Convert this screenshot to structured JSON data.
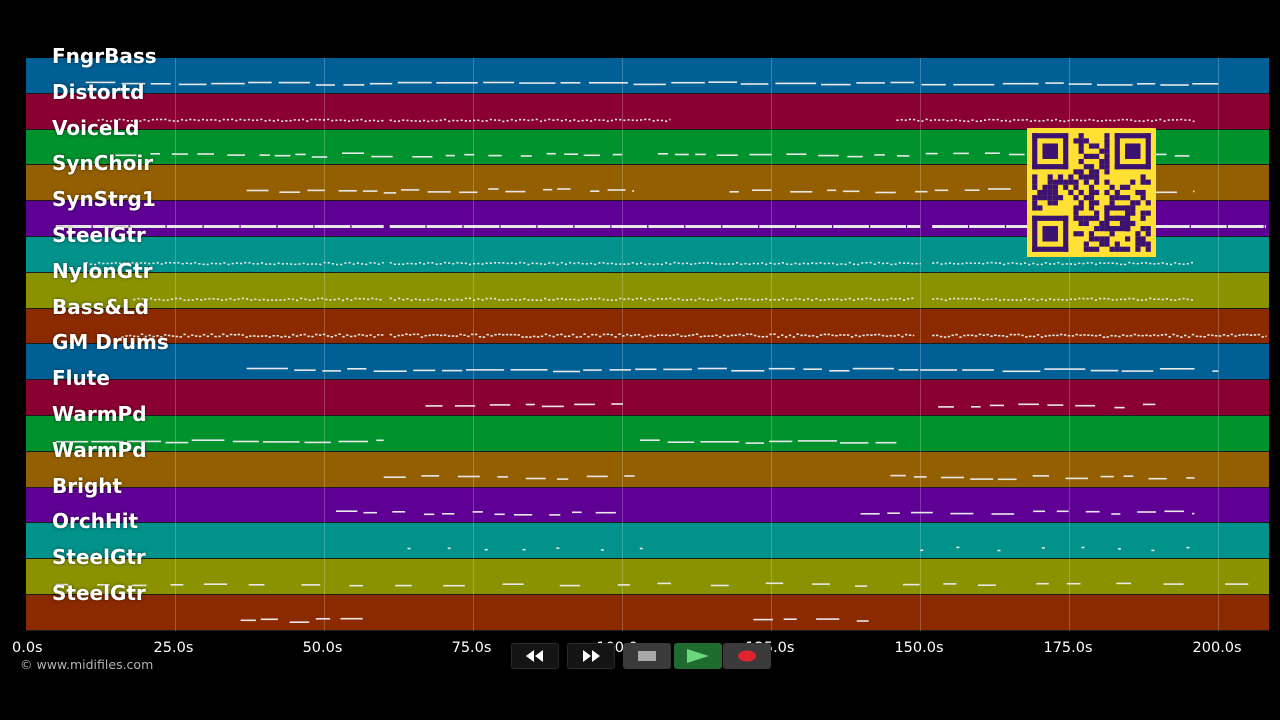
{
  "tracks": [
    {
      "name": "FngrBass",
      "color": "#005f94"
    },
    {
      "name": "Distortd",
      "color": "#8b0032"
    },
    {
      "name": "VoiceLd",
      "color": "#00922d"
    },
    {
      "name": "SynChoir",
      "color": "#945f00"
    },
    {
      "name": "SynStrg1",
      "color": "#5f0094"
    },
    {
      "name": "SteelGtr",
      "color": "#00928b"
    },
    {
      "name": "NylonGtr",
      "color": "#8b9200"
    },
    {
      "name": "Bass&Ld",
      "color": "#8b2a00"
    },
    {
      "name": "GM Drums",
      "color": "#005f94"
    },
    {
      "name": "Flute",
      "color": "#8b0032"
    },
    {
      "name": "WarmPd",
      "color": "#00922d"
    },
    {
      "name": "WarmPd",
      "color": "#945f00"
    },
    {
      "name": "Bright",
      "color": "#5f0094"
    },
    {
      "name": "OrchHit",
      "color": "#00928b"
    },
    {
      "name": "SteelGtr",
      "color": "#8b9200"
    },
    {
      "name": "SteelGtr",
      "color": "#8b2a00"
    }
  ],
  "extra_lane_colors": [
    "#005f94",
    "#8b0032",
    "#00922d",
    "#945f00",
    "#5f0094",
    "#00928b",
    "#8b9200",
    "#8b2a00"
  ],
  "timeline": {
    "max_seconds": 208.5,
    "ticks": [
      {
        "value": 0,
        "label": "0.0s"
      },
      {
        "value": 25,
        "label": "25.0s"
      },
      {
        "value": 50,
        "label": "50.0s"
      },
      {
        "value": 75,
        "label": "75.0s"
      },
      {
        "value": 100,
        "label": "100.0s"
      },
      {
        "value": 125,
        "label": "125.0s"
      },
      {
        "value": 150,
        "label": "150.0s"
      },
      {
        "value": 175,
        "label": "175.0s"
      },
      {
        "value": 200,
        "label": "200.0s"
      }
    ]
  },
  "copyright": "© www.midifiles.com",
  "transport": {
    "rewind_icon": "rewind-icon",
    "fast_forward_icon": "fast-forward-icon",
    "stop_icon": "stop-icon",
    "play_icon": "play-icon",
    "record_icon": "record-icon"
  },
  "qr_color": "#ffe033",
  "qr_module_color": "#3b1270"
}
